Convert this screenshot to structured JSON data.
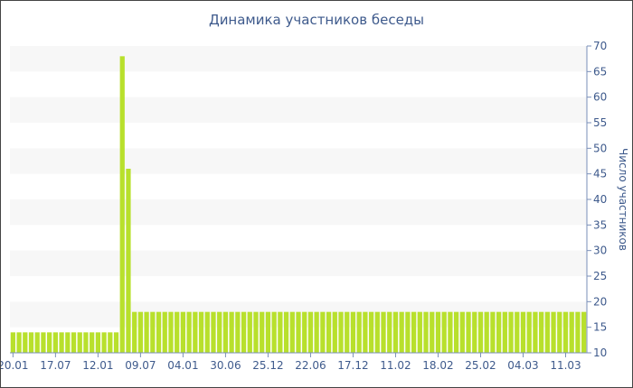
{
  "chart_data": {
    "type": "bar",
    "title": "Динамика участников беседы",
    "xlabel": "",
    "ylabel": "Число участников",
    "y_axis_position": "right",
    "ylim": [
      10,
      70
    ],
    "yticks": [
      10,
      15,
      20,
      25,
      30,
      35,
      40,
      45,
      50,
      55,
      60,
      65,
      70
    ],
    "grid": "horizontal alternating bands",
    "legend": "none",
    "x_tick_labels": [
      "20.01",
      "17.07",
      "12.01",
      "09.07",
      "04.01",
      "30.06",
      "25.12",
      "22.06",
      "17.12",
      "11.02",
      "18.02",
      "25.02",
      "04.03",
      "11.03"
    ],
    "x_tick_bar_index": [
      0,
      7,
      14,
      21,
      28,
      35,
      42,
      49,
      56,
      63,
      70,
      77,
      84,
      91
    ],
    "values": [
      14,
      14,
      14,
      14,
      14,
      14,
      14,
      14,
      14,
      14,
      14,
      14,
      14,
      14,
      14,
      14,
      14,
      14,
      68,
      46,
      18,
      18,
      18,
      18,
      18,
      18,
      18,
      18,
      18,
      18,
      18,
      18,
      18,
      18,
      18,
      18,
      18,
      18,
      18,
      18,
      18,
      18,
      18,
      18,
      18,
      18,
      18,
      18,
      18,
      18,
      18,
      18,
      18,
      18,
      18,
      18,
      18,
      18,
      18,
      18,
      18,
      18,
      18,
      18,
      18,
      18,
      18,
      18,
      18,
      18,
      18,
      18,
      18,
      18,
      18,
      18,
      18,
      18,
      18,
      18,
      18,
      18,
      18,
      18,
      18,
      18,
      18,
      18,
      18,
      18,
      18,
      18,
      18,
      18,
      18
    ]
  },
  "colors": {
    "bar": "#b8e02c",
    "band": "#f7f7f7",
    "text": "#3e5a8c",
    "axis": "#7a8fb8"
  }
}
